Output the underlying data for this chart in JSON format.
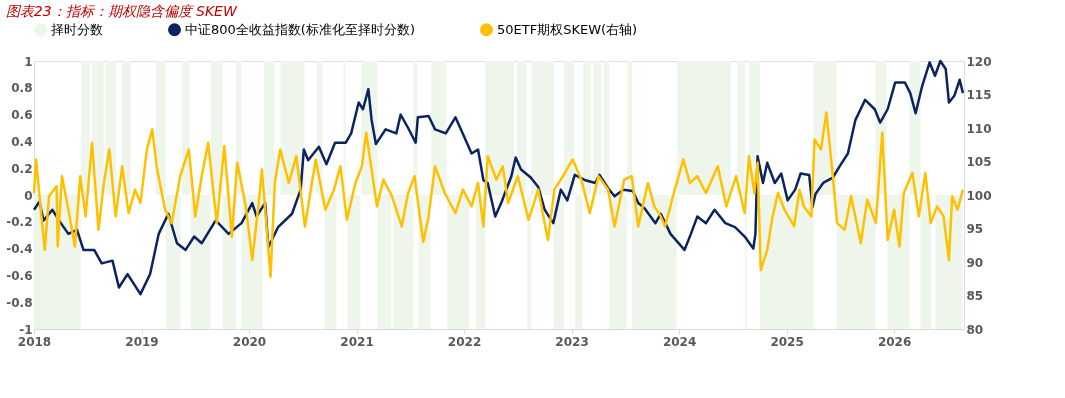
{
  "chart_data": {
    "type": "line",
    "title": "图表23：指标：期权隐含偏度 SKEW",
    "xlim": [
      2018,
      2026.65
    ],
    "xticks": [
      2018,
      2019,
      2020,
      2021,
      2022,
      2023,
      2024,
      2025,
      2026
    ],
    "ylim": [
      -1,
      1
    ],
    "yticks": [
      -1,
      -0.8,
      -0.6,
      -0.4,
      -0.2,
      0,
      0.2,
      0.4,
      0.6,
      0.8,
      1
    ],
    "y2lim": [
      80,
      120
    ],
    "y2ticks": [
      80,
      85,
      90,
      95,
      100,
      105,
      110,
      115,
      120
    ],
    "legend": "top",
    "grid": false,
    "series": [
      {
        "name": "择时分数",
        "type": "area",
        "color": "#eef6ec",
        "x": [
          2018.0,
          2018.436,
          2018.52,
          2018.539,
          2018.65,
          2018.669,
          2018.761,
          2018.817,
          2018.901,
          2019.133,
          2019.226,
          2019.365,
          2019.374,
          2019.448,
          2019.458,
          2019.643,
          2019.755,
          2019.876,
          2019.931,
          2020.126,
          2020.136,
          2020.238,
          2020.293,
          2020.516,
          2020.628,
          2020.683,
          2020.702,
          2020.813,
          2020.878,
          2020.897,
          2020.915,
          2021.036,
          2021.045,
          2021.194,
          2021.324,
          2021.343,
          2021.528,
          2021.565,
          2021.575,
          2021.686,
          2021.695,
          2021.835,
          2021.844,
          2022.048,
          2022.113,
          2022.197,
          2022.466,
          2022.494,
          2022.578,
          2022.587,
          2022.624,
          2022.837,
          2022.93,
          2023.023,
          2023.033,
          2023.097,
          2023.107,
          2023.181,
          2023.2,
          2023.274,
          2023.302,
          2023.348,
          2023.515,
          2023.562,
          2023.98,
          2024.481,
          2024.537,
          2024.611,
          2024.63,
          2024.648,
          2024.75,
          2025.252,
          2025.465,
          2025.827,
          2025.929,
          2025.939,
          2026.143,
          2026.245,
          2026.347,
          2026.384,
          2026.635
        ],
        "values": [
          -1,
          1,
          0,
          1,
          0,
          1,
          0,
          1,
          0,
          1,
          -1,
          0,
          1,
          0,
          -1,
          1,
          -1,
          1,
          -1,
          0,
          1,
          0,
          1,
          0,
          1,
          0,
          -1,
          0,
          1,
          0,
          -1,
          0,
          1,
          -1,
          0,
          -1,
          1,
          0,
          -1,
          0,
          1,
          0,
          -1,
          0,
          -1,
          1,
          0,
          1,
          0,
          -1,
          1,
          -1,
          1,
          0,
          -1,
          0,
          1,
          0,
          1,
          0,
          1,
          -1,
          1,
          -1,
          1,
          0,
          1,
          -1,
          0,
          1,
          -1,
          1,
          -1,
          1,
          0,
          -1,
          1,
          -1,
          0,
          -1,
          0
        ]
      },
      {
        "name": "中证800全收益指数(标准化至择时分数)",
        "type": "line",
        "color": "#0b2461",
        "x": [
          2018.0,
          2018.05,
          2018.09,
          2018.17,
          2018.25,
          2018.32,
          2018.4,
          2018.46,
          2018.56,
          2018.63,
          2018.73,
          2018.79,
          2018.87,
          2018.99,
          2019.08,
          2019.16,
          2019.25,
          2019.33,
          2019.41,
          2019.49,
          2019.56,
          2019.69,
          2019.81,
          2019.93,
          2020.03,
          2020.07,
          2020.15,
          2020.18,
          2020.27,
          2020.4,
          2020.48,
          2020.51,
          2020.55,
          2020.65,
          2020.72,
          2020.8,
          2020.9,
          2020.95,
          2021.02,
          2021.06,
          2021.11,
          2021.14,
          2021.18,
          2021.27,
          2021.37,
          2021.41,
          2021.48,
          2021.55,
          2021.57,
          2021.67,
          2021.73,
          2021.83,
          2021.92,
          2021.97,
          2022.07,
          2022.13,
          2022.18,
          2022.22,
          2022.29,
          2022.35,
          2022.44,
          2022.48,
          2022.53,
          2022.62,
          2022.69,
          2022.75,
          2022.83,
          2022.9,
          2022.96,
          2023.03,
          2023.13,
          2023.22,
          2023.26,
          2023.34,
          2023.4,
          2023.48,
          2023.57,
          2023.62,
          2023.68,
          2023.78,
          2023.83,
          2023.92,
          2024.05,
          2024.11,
          2024.17,
          2024.25,
          2024.33,
          2024.43,
          2024.52,
          2024.61,
          2024.69,
          2024.71,
          2024.73,
          2024.78,
          2024.82,
          2024.89,
          2024.95,
          2025.01,
          2025.08,
          2025.13,
          2025.21,
          2025.24,
          2025.27,
          2025.34,
          2025.43,
          2025.49,
          2025.57,
          2025.64,
          2025.73,
          2025.82,
          2025.87,
          2025.94,
          2026.01,
          2026.1,
          2026.15,
          2026.2,
          2026.26,
          2026.33,
          2026.38,
          2026.43,
          2026.48,
          2026.51,
          2026.56,
          2026.61,
          2026.64
        ],
        "values": [
          -0.11,
          -0.05,
          -0.19,
          -0.11,
          -0.21,
          -0.29,
          -0.26,
          -0.41,
          -0.41,
          -0.51,
          -0.49,
          -0.69,
          -0.59,
          -0.74,
          -0.59,
          -0.29,
          -0.14,
          -0.36,
          -0.41,
          -0.31,
          -0.36,
          -0.19,
          -0.29,
          -0.21,
          -0.06,
          -0.16,
          -0.06,
          -0.39,
          -0.24,
          -0.14,
          0.04,
          0.34,
          0.26,
          0.36,
          0.23,
          0.39,
          0.39,
          0.46,
          0.69,
          0.64,
          0.79,
          0.56,
          0.38,
          0.49,
          0.46,
          0.6,
          0.5,
          0.39,
          0.58,
          0.59,
          0.49,
          0.46,
          0.58,
          0.49,
          0.31,
          0.34,
          0.11,
          0.09,
          -0.16,
          -0.05,
          0.14,
          0.28,
          0.19,
          0.13,
          0.06,
          -0.11,
          -0.21,
          0.04,
          -0.04,
          0.15,
          0.11,
          0.09,
          0.15,
          0.05,
          -0.01,
          0.04,
          0.03,
          -0.06,
          -0.1,
          -0.21,
          -0.14,
          -0.29,
          -0.41,
          -0.29,
          -0.16,
          -0.21,
          -0.11,
          -0.21,
          -0.24,
          -0.31,
          -0.4,
          -0.29,
          0.29,
          0.09,
          0.24,
          0.09,
          0.16,
          -0.04,
          0.04,
          0.16,
          0.15,
          -0.09,
          0.01,
          0.09,
          0.13,
          0.21,
          0.31,
          0.56,
          0.71,
          0.64,
          0.54,
          0.64,
          0.84,
          0.84,
          0.76,
          0.61,
          0.81,
          0.99,
          0.89,
          1.0,
          0.94,
          0.69,
          0.74,
          0.86,
          0.76
        ]
      },
      {
        "name": "50ETF期权SKEW(右轴)",
        "type": "line",
        "axis": "y2",
        "color": "#ffc000",
        "x": [
          2018.0,
          2018.02,
          2018.06,
          2018.1,
          2018.14,
          2018.21,
          2018.22,
          2018.26,
          2018.32,
          2018.38,
          2018.43,
          2018.48,
          2018.54,
          2018.6,
          2018.65,
          2018.7,
          2018.76,
          2018.82,
          2018.88,
          2018.94,
          2018.99,
          2019.05,
          2019.1,
          2019.14,
          2019.22,
          2019.28,
          2019.36,
          2019.44,
          2019.5,
          2019.56,
          2019.62,
          2019.7,
          2019.77,
          2019.84,
          2019.89,
          2019.97,
          2020.03,
          2020.09,
          2020.12,
          2020.2,
          2020.24,
          2020.29,
          2020.37,
          2020.44,
          2020.52,
          2020.62,
          2020.71,
          2020.79,
          2020.85,
          2020.91,
          2020.99,
          2021.05,
          2021.09,
          2021.14,
          2021.19,
          2021.25,
          2021.33,
          2021.42,
          2021.48,
          2021.54,
          2021.62,
          2021.67,
          2021.73,
          2021.82,
          2021.92,
          2021.99,
          2022.07,
          2022.13,
          2022.18,
          2022.22,
          2022.3,
          2022.36,
          2022.41,
          2022.5,
          2022.6,
          2022.69,
          2022.78,
          2022.84,
          2022.92,
          2023.01,
          2023.09,
          2023.17,
          2023.25,
          2023.34,
          2023.4,
          2023.49,
          2023.56,
          2023.62,
          2023.71,
          2023.77,
          2023.83,
          2023.87,
          2023.96,
          2024.04,
          2024.1,
          2024.17,
          2024.25,
          2024.36,
          2024.44,
          2024.53,
          2024.61,
          2024.65,
          2024.7,
          2024.73,
          2024.76,
          2024.82,
          2024.87,
          2024.92,
          2024.98,
          2025.07,
          2025.12,
          2025.16,
          2025.23,
          2025.26,
          2025.32,
          2025.37,
          2025.43,
          2025.47,
          2025.54,
          2025.6,
          2025.69,
          2025.75,
          2025.83,
          2025.89,
          2025.94,
          2026.0,
          2026.05,
          2026.09,
          2026.17,
          2026.23,
          2026.29,
          2026.34,
          2026.4,
          2026.46,
          2026.51,
          2026.54,
          2026.59,
          2026.64
        ],
        "values": [
          100.3,
          105.3,
          98.3,
          91.8,
          99.8,
          101.3,
          92.3,
          102.8,
          97.8,
          92.3,
          102.8,
          96.8,
          107.8,
          94.8,
          101.8,
          106.8,
          96.8,
          104.3,
          97.3,
          100.8,
          98.8,
          106.8,
          109.8,
          104.3,
          97.8,
          95.8,
          102.8,
          106.8,
          96.8,
          102.8,
          107.8,
          95.8,
          107.3,
          93.8,
          104.8,
          98.3,
          90.3,
          98.8,
          103.8,
          87.8,
          101.8,
          106.8,
          101.8,
          105.8,
          95.3,
          105.3,
          97.8,
          100.8,
          104.3,
          96.3,
          101.8,
          104.3,
          109.3,
          103.8,
          98.3,
          102.3,
          99.8,
          95.3,
          100.3,
          102.8,
          93.0,
          96.8,
          104.3,
          100.3,
          97.3,
          100.8,
          98.3,
          101.8,
          95.3,
          105.8,
          102.3,
          104.3,
          98.8,
          102.8,
          96.3,
          100.8,
          93.3,
          100.8,
          102.8,
          105.3,
          102.3,
          97.3,
          102.8,
          100.8,
          95.3,
          102.3,
          102.8,
          95.3,
          101.8,
          98.3,
          96.8,
          95.3,
          100.8,
          105.3,
          101.8,
          102.8,
          100.3,
          104.3,
          98.3,
          102.8,
          97.3,
          105.8,
          100.3,
          104.8,
          88.8,
          91.8,
          96.8,
          100.3,
          97.8,
          95.3,
          100.8,
          98.3,
          96.8,
          108.3,
          106.8,
          112.3,
          102.8,
          95.8,
          94.8,
          99.8,
          92.8,
          99.3,
          95.8,
          109.3,
          93.3,
          97.8,
          92.3,
          100.3,
          103.3,
          96.8,
          103.3,
          95.8,
          98.3,
          96.8,
          90.3,
          99.8,
          97.8,
          100.8
        ]
      }
    ]
  }
}
